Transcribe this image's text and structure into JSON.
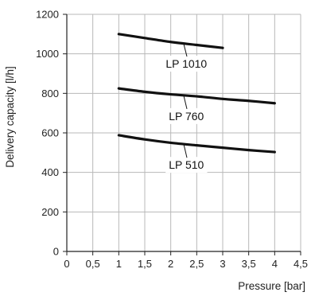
{
  "chart_data": {
    "type": "line",
    "title": "",
    "xlabel": "Pressure [bar]",
    "ylabel": "Delivery capacity [l/h]",
    "xlim": [
      0,
      4.5
    ],
    "ylim": [
      0,
      1200
    ],
    "xticks": [
      0,
      0.5,
      1,
      1.5,
      2,
      2.5,
      3,
      3.5,
      4,
      4.5
    ],
    "xtick_labels": [
      "0",
      "0,5",
      "1",
      "1,5",
      "2",
      "2,5",
      "3",
      "3,5",
      "4",
      "4,5"
    ],
    "yticks": [
      0,
      200,
      400,
      600,
      800,
      1000,
      1200
    ],
    "ytick_labels": [
      "0",
      "200",
      "400",
      "600",
      "800",
      "1000",
      "1200"
    ],
    "grid": true,
    "series": [
      {
        "name": "LP 1010",
        "x": [
          1,
          1.5,
          2,
          2.5,
          3
        ],
        "y": [
          1100,
          1080,
          1060,
          1045,
          1030
        ],
        "label_anchor": {
          "x": 2.25,
          "y": 1050
        },
        "label_pos": {
          "x": 2.3,
          "y": 930
        }
      },
      {
        "name": "LP 760",
        "x": [
          1,
          1.5,
          2,
          2.5,
          3,
          3.5,
          4
        ],
        "y": [
          825,
          808,
          795,
          785,
          772,
          762,
          750
        ],
        "label_anchor": {
          "x": 2.25,
          "y": 788
        },
        "label_pos": {
          "x": 2.3,
          "y": 665
        }
      },
      {
        "name": "LP 510",
        "x": [
          1,
          1.5,
          2,
          2.5,
          3,
          3.5,
          4
        ],
        "y": [
          588,
          567,
          550,
          537,
          525,
          513,
          503
        ],
        "label_anchor": {
          "x": 2.25,
          "y": 543
        },
        "label_pos": {
          "x": 2.3,
          "y": 418
        }
      }
    ]
  }
}
